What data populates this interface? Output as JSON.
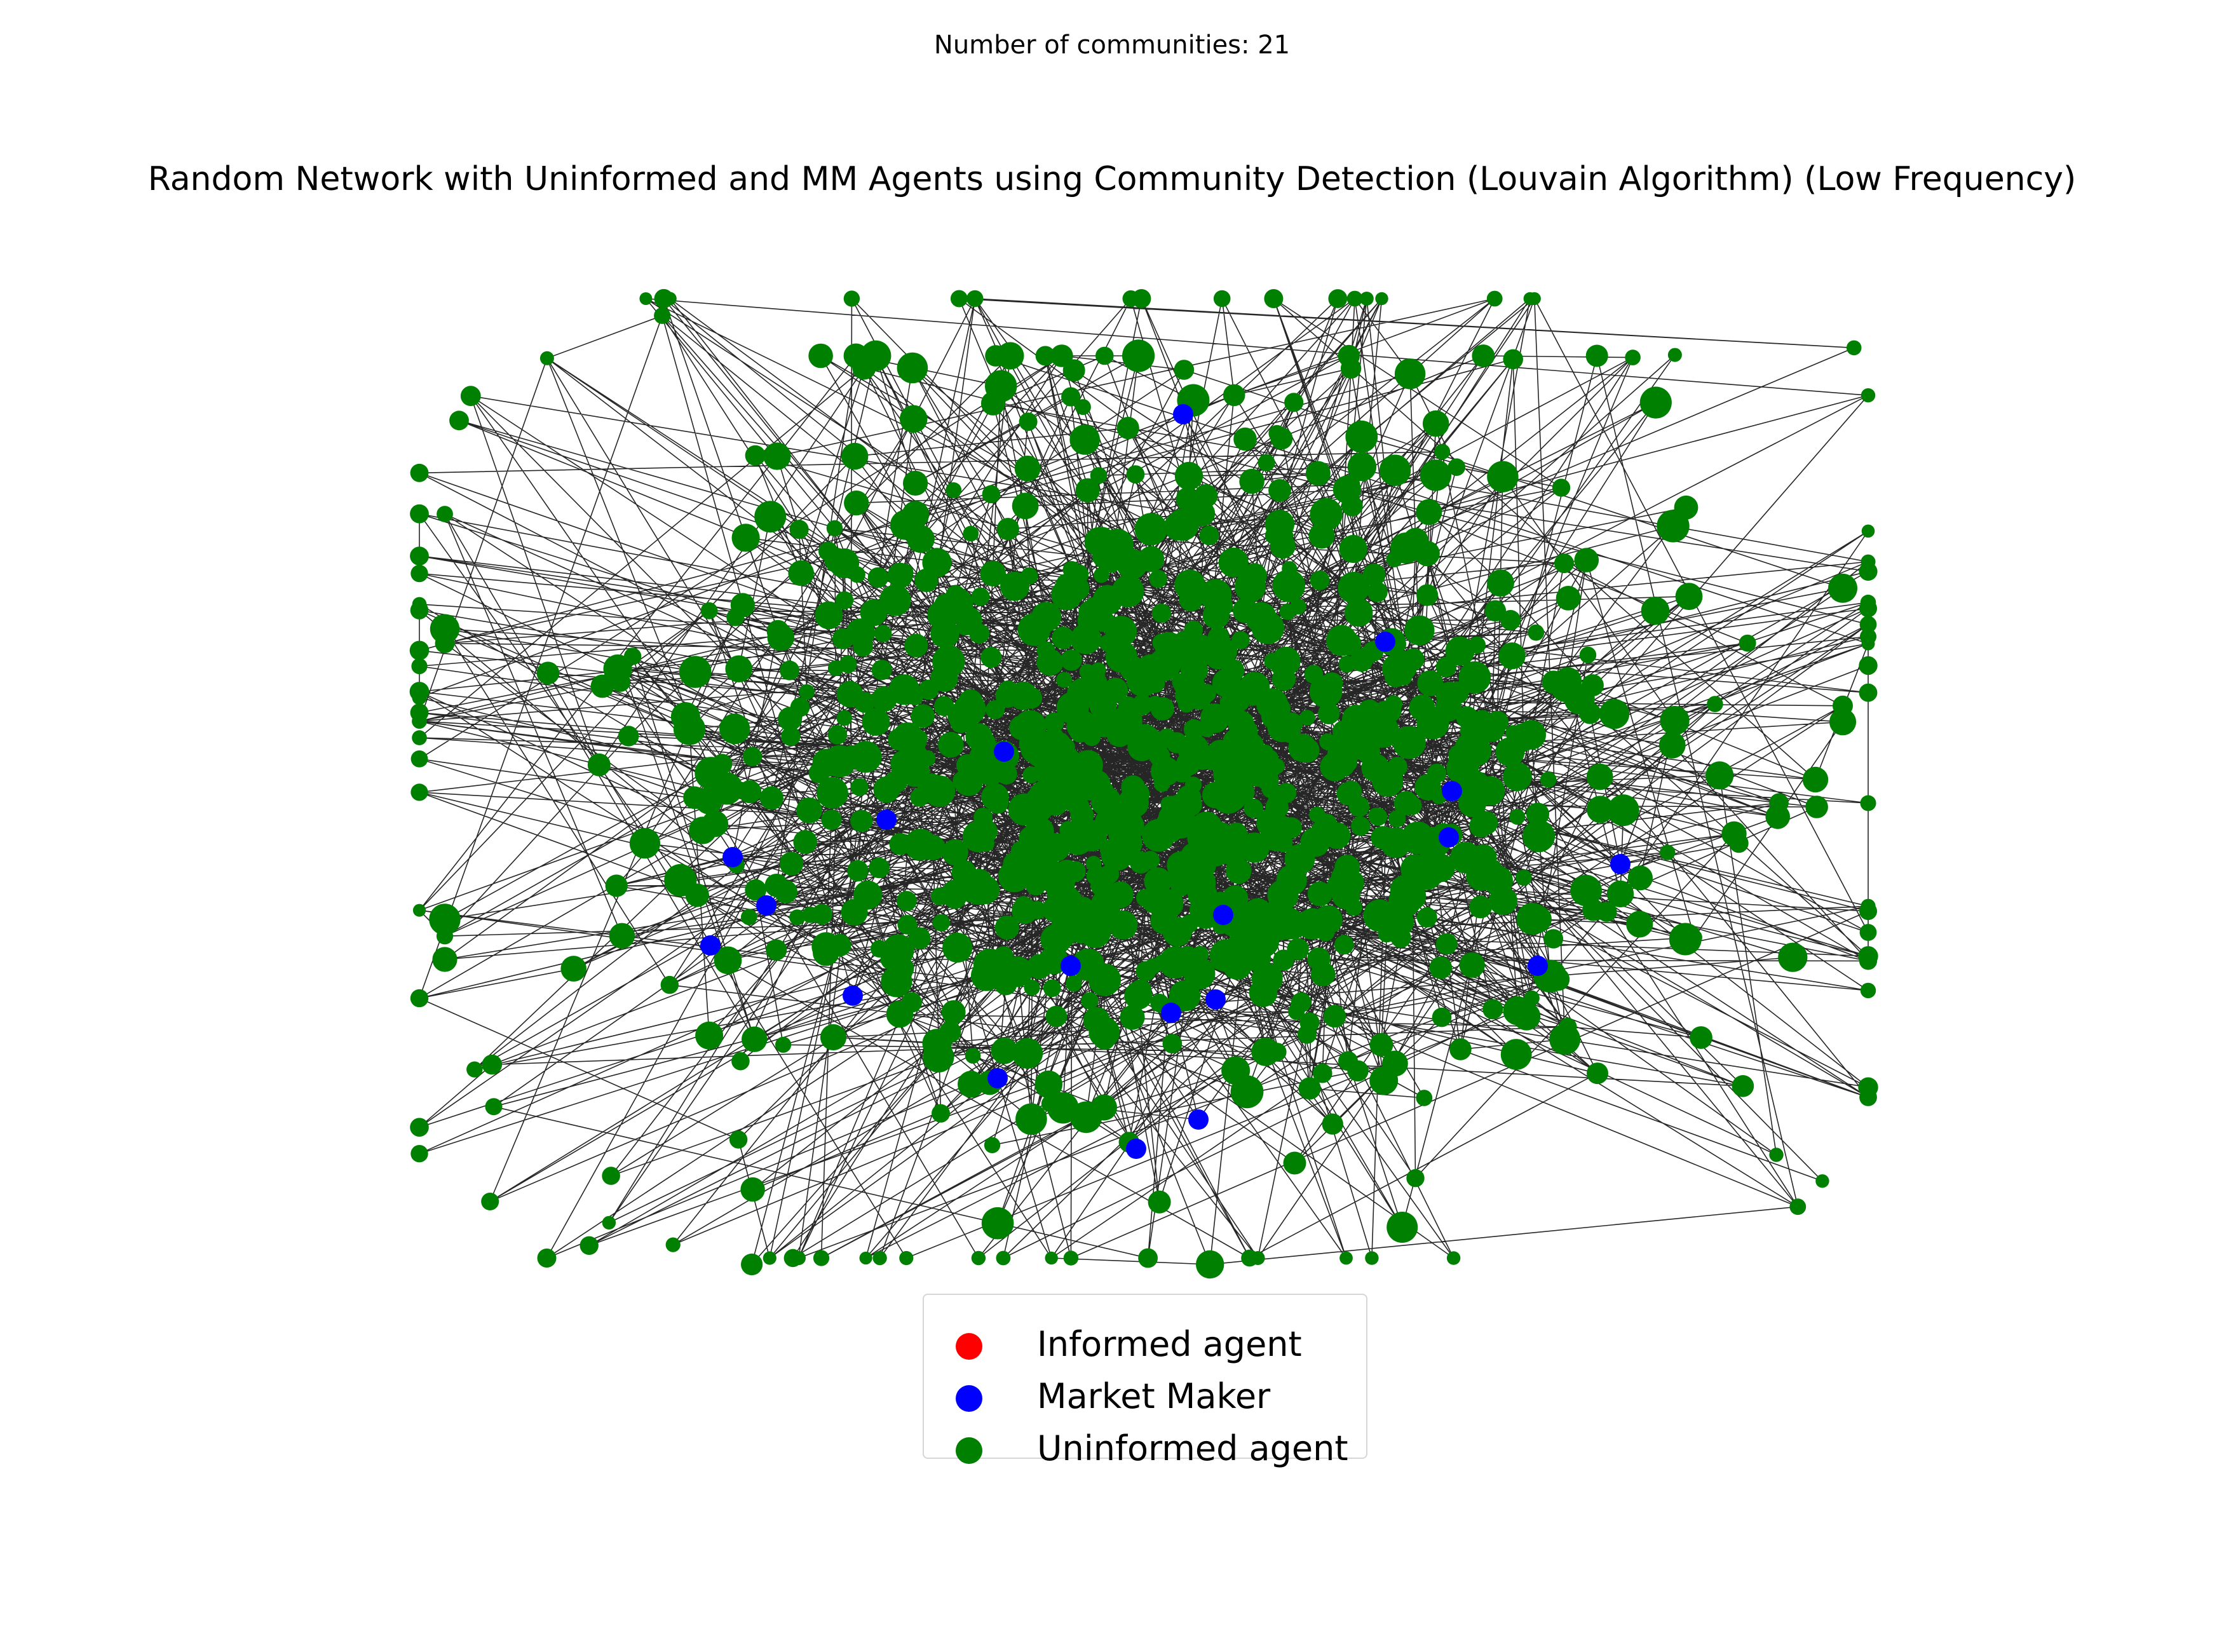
{
  "figure": {
    "suptitle": "Number of communities: 21",
    "title": "Random Network with Uninformed and MM Agents using Community Detection (Louvain Algorithm) (Low Frequency)"
  },
  "legend": {
    "items": [
      {
        "label": "Informed agent",
        "color": "#ff0000"
      },
      {
        "label": "Market Maker",
        "color": "#0000ff"
      },
      {
        "label": "Uninformed agent",
        "color": "#008000"
      }
    ]
  },
  "colors": {
    "informed": "#ff0000",
    "market_maker": "#0000ff",
    "uninformed": "#008000",
    "edge": "#000000"
  },
  "network": {
    "type": "random",
    "node_types": [
      "Market Maker",
      "Uninformed agent"
    ],
    "community_count": 21
  }
}
